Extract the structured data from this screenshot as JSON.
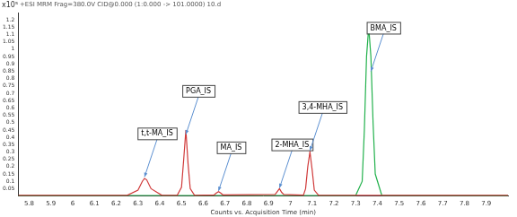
{
  "chart_data": {
    "type": "line",
    "subtitle": "+ESI MRM Frag=380.0V CID@0.000 (1:0.000 -> 101.0000) 10.d",
    "y_label": "x10⁵",
    "x_label": "Counts vs. Acquisition Time (min)",
    "xlim": [
      5.75,
      8.0
    ],
    "xticks": [
      5.8,
      5.9,
      6,
      6.1,
      6.2,
      6.3,
      6.4,
      6.5,
      6.6,
      6.7,
      6.8,
      6.9,
      7,
      7.1,
      7.2,
      7.3,
      7.4,
      7.5,
      7.6,
      7.7,
      7.8,
      7.9
    ],
    "ylim": [
      0,
      1.25
    ],
    "yticks": [
      0.05,
      0.1,
      0.15,
      0.2,
      0.25,
      0.3,
      0.35,
      0.4,
      0.45,
      0.5,
      0.55,
      0.6,
      0.65,
      0.7,
      0.75,
      0.8,
      0.85,
      0.9,
      0.95,
      1,
      1.05,
      1.1,
      1.15,
      1.2
    ],
    "grid": false,
    "series": [
      {
        "color": "#d03a3a",
        "x": [
          5.75,
          6.25,
          6.3,
          6.32,
          6.33,
          6.34,
          6.36,
          6.41,
          6.48,
          6.5,
          6.51,
          6.52,
          6.53,
          6.54,
          6.56,
          6.65,
          6.66,
          6.67,
          6.68,
          6.69,
          6.93,
          6.94,
          6.95,
          6.96,
          6.97,
          7.06,
          7.07,
          7.08,
          7.09,
          7.1,
          7.11,
          7.13,
          8.0
        ],
        "values": [
          0.005,
          0.005,
          0.04,
          0.1,
          0.12,
          0.11,
          0.05,
          0.005,
          0.005,
          0.06,
          0.25,
          0.45,
          0.22,
          0.05,
          0.005,
          0.008,
          0.02,
          0.03,
          0.02,
          0.008,
          0.01,
          0.03,
          0.05,
          0.025,
          0.01,
          0.006,
          0.05,
          0.2,
          0.3,
          0.18,
          0.04,
          0.005,
          0.005
        ]
      },
      {
        "color": "#22b14c",
        "x": [
          5.75,
          7.3,
          7.33,
          7.34,
          7.35,
          7.36,
          7.37,
          7.38,
          7.39,
          7.42,
          8.0
        ],
        "values": [
          0.003,
          0.003,
          0.1,
          0.45,
          0.95,
          1.15,
          0.95,
          0.5,
          0.15,
          0.005,
          0.003
        ]
      }
    ],
    "annotations": [
      {
        "text": "t,t-MA_IS",
        "x": 6.33,
        "y": 0.13
      },
      {
        "text": "PGA_IS",
        "x": 6.52,
        "y": 0.42
      },
      {
        "text": "MA_IS",
        "x": 6.67,
        "y": 0.035
      },
      {
        "text": "2-MHA_IS",
        "x": 6.95,
        "y": 0.055
      },
      {
        "text": "3,4-MHA_IS",
        "x": 7.09,
        "y": 0.31
      },
      {
        "text": "BMA_IS",
        "x": 7.37,
        "y": 0.85
      }
    ]
  }
}
